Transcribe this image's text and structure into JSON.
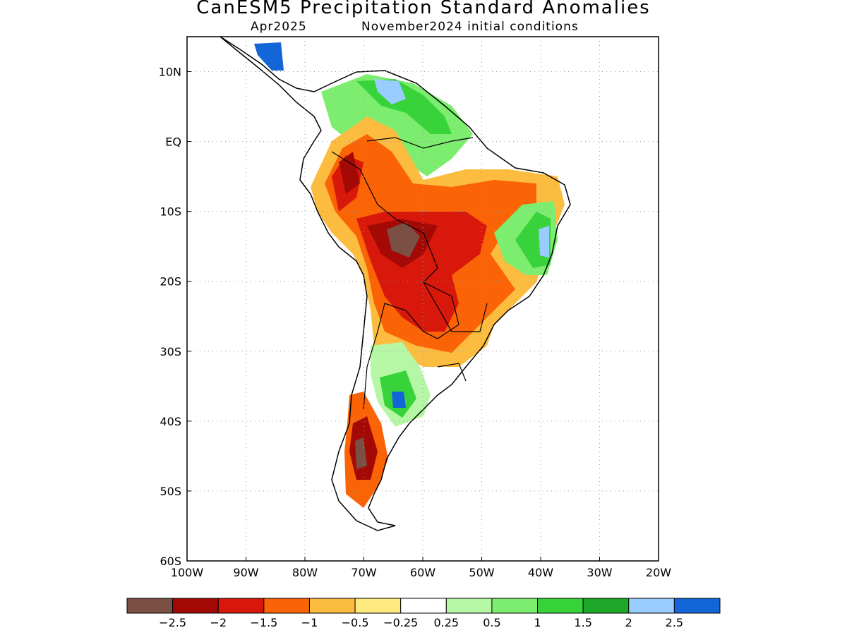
{
  "title": "CanESM5 Precipitation Standard Anomalies",
  "subtitle_left": "Apr2025",
  "subtitle_right": "November2024 initial conditions",
  "map": {
    "lon_range": [
      -100,
      -20
    ],
    "lat_range": [
      -60,
      15
    ],
    "x_ticks": [
      "100W",
      "90W",
      "80W",
      "70W",
      "60W",
      "50W",
      "40W",
      "30W",
      "20W"
    ],
    "y_ticks": [
      "10N",
      "EQ",
      "10S",
      "20S",
      "30S",
      "40S",
      "50S",
      "60S"
    ]
  },
  "colorbar": {
    "labels": [
      "−2.5",
      "−2",
      "−1.5",
      "−1",
      "−0.5",
      "−0.25",
      "0.25",
      "0.5",
      "1",
      "1.5",
      "2",
      "2.5"
    ],
    "colors": [
      "#7a4f44",
      "#a30a05",
      "#d9180c",
      "#fb6406",
      "#fcbc3f",
      "#feea7e",
      "#ffffff",
      "#b6f7a6",
      "#7ded6f",
      "#38d33a",
      "#1ea82a",
      "#99ccff",
      "#1466d8"
    ]
  }
}
